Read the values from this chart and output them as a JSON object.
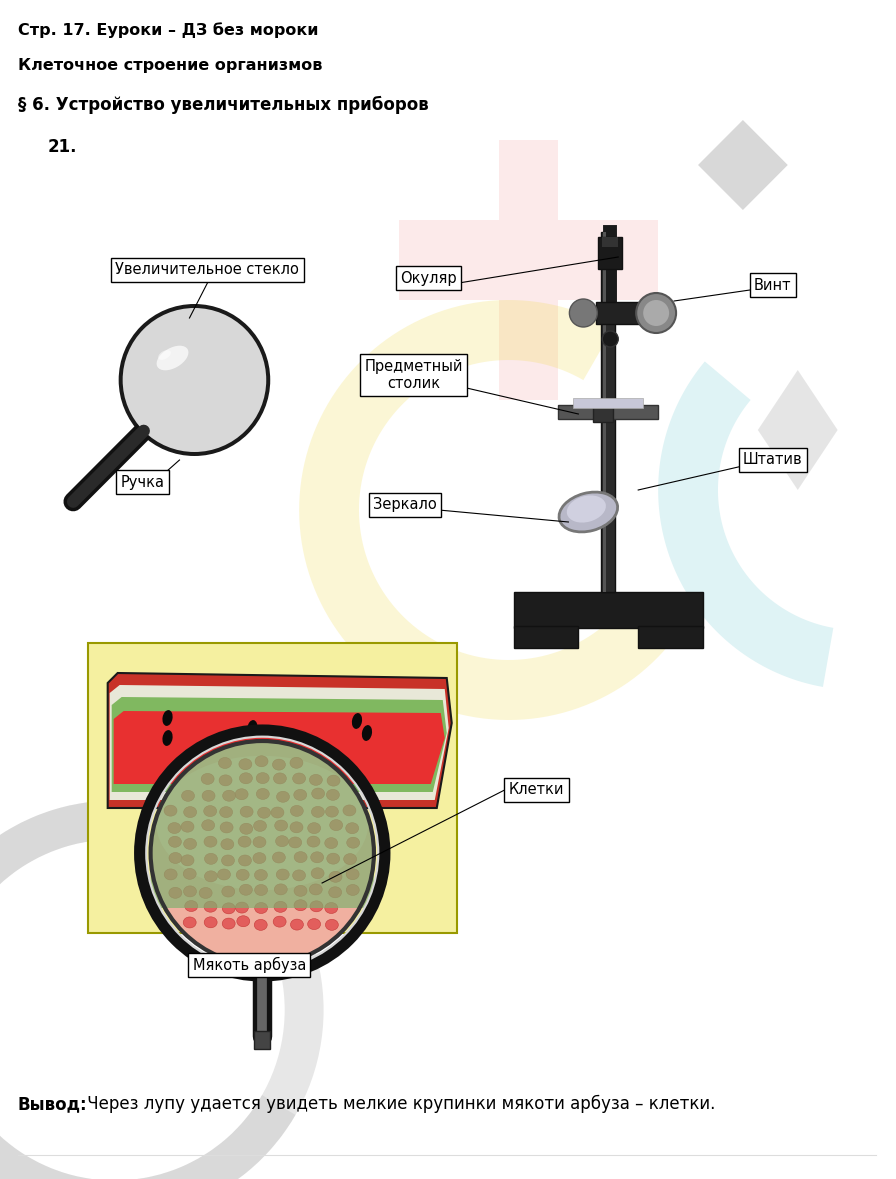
{
  "title1": "Стр. 17. Еуроки – ДЗ без мороки",
  "title2": "Клеточное строение организмов",
  "title3": "§ 6. Устройство увеличительных приборов",
  "number": "21.",
  "bg_color": "#ffffff",
  "box_labels": {
    "uv_steklo": "Увеличительное стекло",
    "okuljar": "Окуляр",
    "vint": "Винт",
    "predm_stolik": "Предметный\nстолик",
    "ruchka": "Ручка",
    "zerkalo": "Зеркало",
    "shtatv": "Штатив",
    "kletki": "Клетки",
    "myakot": "Мякоть арбуза"
  },
  "vyvod_bold": "Вывод:",
  "vyvod_rest": " Через лупу удается увидеть мелкие крупинки мякоти арбуза – клетки."
}
